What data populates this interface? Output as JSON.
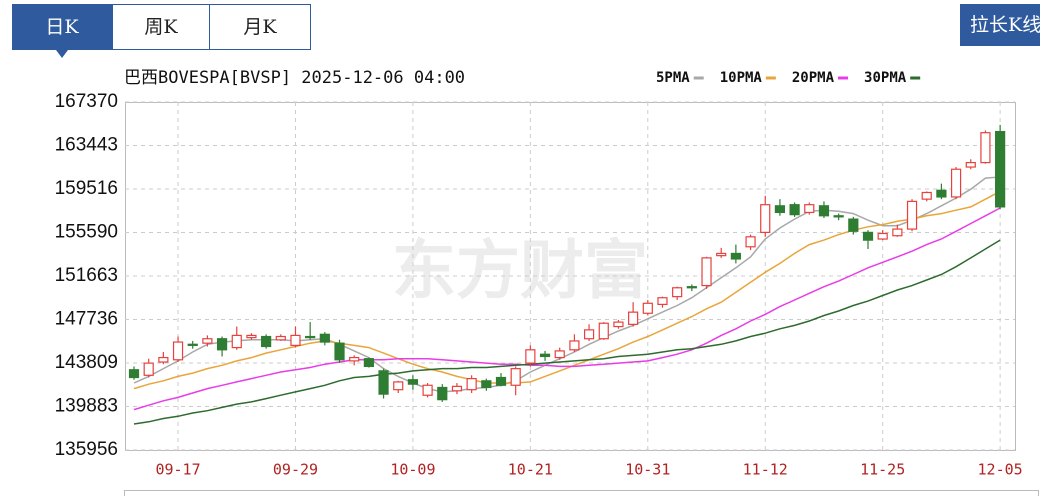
{
  "toolbar": {
    "tabs": [
      "日K",
      "周K",
      "月K"
    ],
    "button": "拉长K线"
  },
  "chart_data": {
    "type": "candlestick",
    "title": "巴西BOVESPA[BVSP] 2025-12-06 04:00",
    "watermark": "东方财富",
    "categories": [
      null,
      null,
      null,
      "09-17",
      null,
      null,
      null,
      null,
      null,
      null,
      null,
      "09-29",
      null,
      null,
      null,
      null,
      null,
      null,
      null,
      "10-09",
      null,
      null,
      null,
      null,
      null,
      null,
      null,
      "10-21",
      null,
      null,
      null,
      null,
      null,
      null,
      null,
      "10-31",
      null,
      null,
      null,
      null,
      null,
      null,
      null,
      "11-12",
      null,
      null,
      null,
      null,
      null,
      null,
      null,
      "11-25",
      null,
      null,
      null,
      null,
      null,
      null,
      null,
      "12-05"
    ],
    "open": [
      143200,
      142700,
      143900,
      144100,
      145500,
      145600,
      146000,
      145200,
      146100,
      146200,
      145900,
      145400,
      146200,
      146400,
      145600,
      144000,
      144200,
      143100,
      141400,
      142300,
      140900,
      141600,
      141300,
      141400,
      142200,
      142500,
      141800,
      143800,
      144600,
      144300,
      145000,
      146000,
      146000,
      147100,
      147300,
      148300,
      149100,
      149800,
      150700,
      150800,
      153500,
      153700,
      154300,
      155600,
      158000,
      158100,
      157400,
      158000,
      157100,
      156800,
      155600,
      155000,
      155300,
      155900,
      158600,
      159400,
      158800,
      161500,
      161900,
      164700
    ],
    "high": [
      143500,
      144200,
      144800,
      146200,
      145800,
      146300,
      146200,
      147100,
      146500,
      146400,
      146400,
      147100,
      147500,
      146600,
      145900,
      144500,
      144300,
      143300,
      142200,
      142700,
      142000,
      141900,
      142000,
      142700,
      142400,
      142900,
      143500,
      145400,
      144900,
      145200,
      146400,
      147300,
      147500,
      147700,
      149300,
      149500,
      149800,
      150700,
      150900,
      153400,
      154200,
      154500,
      155400,
      158900,
      158600,
      158300,
      158300,
      158400,
      157300,
      157000,
      155800,
      155800,
      156300,
      158600,
      159300,
      160000,
      161500,
      162200,
      164800,
      165300
    ],
    "low": [
      142300,
      142500,
      143700,
      143900,
      145100,
      145300,
      144400,
      145000,
      145900,
      145100,
      145800,
      145200,
      145900,
      145400,
      143800,
      143600,
      143400,
      140600,
      141100,
      141400,
      140700,
      140300,
      141000,
      141100,
      141300,
      141700,
      140900,
      143500,
      144000,
      144100,
      144800,
      145800,
      145900,
      146900,
      147100,
      148100,
      148800,
      149500,
      150300,
      150500,
      153300,
      152800,
      154000,
      155200,
      157100,
      157000,
      157200,
      156900,
      156700,
      155400,
      154100,
      154900,
      155200,
      155700,
      158400,
      158600,
      158600,
      161300,
      161800,
      157700
    ],
    "close": [
      142500,
      143800,
      144300,
      145700,
      145400,
      146000,
      145000,
      146300,
      146300,
      145300,
      146200,
      146300,
      146100,
      145700,
      144100,
      144300,
      143500,
      141000,
      142100,
      141900,
      141800,
      140500,
      141700,
      142400,
      141600,
      141800,
      143300,
      145000,
      144400,
      144900,
      145800,
      146800,
      147400,
      147500,
      148400,
      149200,
      149700,
      150600,
      150600,
      153300,
      153700,
      153200,
      155200,
      158100,
      157400,
      157200,
      158100,
      157100,
      157000,
      155700,
      154900,
      155500,
      155900,
      158400,
      159200,
      158800,
      161300,
      161900,
      164600,
      157900
    ],
    "up_color": "#e8403c",
    "down_color": "#2e7d32",
    "series": [
      {
        "name": "5PMA",
        "color": "#a8a8a8",
        "values": [
          142000,
          142600,
          143300,
          144000,
          144800,
          145500,
          145700,
          145800,
          145900,
          145900,
          145900,
          145800,
          145900,
          146000,
          145500,
          144900,
          144300,
          143300,
          142600,
          142000,
          141500,
          141200,
          141300,
          141500,
          141600,
          141800,
          142200,
          143000,
          143600,
          144200,
          144800,
          145500,
          146100,
          146700,
          147200,
          147800,
          148400,
          149000,
          149700,
          150600,
          151500,
          152400,
          153400,
          155000,
          156000,
          156800,
          157500,
          157600,
          157500,
          157300,
          156700,
          156200,
          156200,
          156700,
          157300,
          158000,
          158700,
          159500,
          160500,
          160600
        ]
      },
      {
        "name": "10PMA",
        "color": "#eaa53a",
        "values": [
          141500,
          141900,
          142200,
          142600,
          142900,
          143300,
          143600,
          144000,
          144300,
          144700,
          145000,
          145300,
          145600,
          145800,
          145600,
          145400,
          145200,
          144700,
          144200,
          143700,
          143300,
          143000,
          142600,
          142300,
          142000,
          142000,
          142000,
          142100,
          142600,
          143100,
          143600,
          144100,
          144600,
          145100,
          145700,
          146200,
          146800,
          147400,
          148000,
          148700,
          149300,
          150200,
          151100,
          152000,
          152800,
          153700,
          154500,
          154900,
          155400,
          155800,
          156100,
          156300,
          156600,
          156800,
          157100,
          157300,
          157600,
          157900,
          158600,
          159300
        ]
      },
      {
        "name": "20PMA",
        "color": "#e83ce8",
        "values": [
          139600,
          140000,
          140400,
          140700,
          141100,
          141500,
          141800,
          142100,
          142400,
          142700,
          143000,
          143200,
          143400,
          143700,
          143900,
          144100,
          144100,
          144100,
          144200,
          144200,
          144200,
          144100,
          144000,
          143900,
          143800,
          143700,
          143700,
          143600,
          143600,
          143500,
          143500,
          143600,
          143700,
          143800,
          143900,
          144000,
          144300,
          144600,
          145000,
          145600,
          146300,
          146900,
          147600,
          148200,
          148900,
          149500,
          150100,
          150700,
          151200,
          151800,
          152400,
          152900,
          153400,
          153900,
          154500,
          155000,
          155700,
          156400,
          157100,
          157800
        ]
      },
      {
        "name": "30PMA",
        "color": "#2e6b2e",
        "values": [
          138300,
          138500,
          138800,
          139000,
          139300,
          139500,
          139800,
          140100,
          140300,
          140600,
          140900,
          141200,
          141500,
          141800,
          142200,
          142500,
          142600,
          142800,
          142900,
          143100,
          143200,
          143300,
          143300,
          143400,
          143400,
          143500,
          143600,
          143700,
          143800,
          143900,
          144000,
          144100,
          144200,
          144400,
          144500,
          144600,
          144800,
          145000,
          145100,
          145300,
          145500,
          145800,
          146200,
          146500,
          146900,
          147200,
          147600,
          148100,
          148500,
          149000,
          149400,
          149900,
          150400,
          150800,
          151300,
          151800,
          152500,
          153300,
          154100,
          154900
        ]
      }
    ],
    "ylim": [
      135956,
      167370
    ],
    "yticks": [
      135956,
      139883,
      143809,
      147736,
      151663,
      155590,
      159516,
      163443,
      167370
    ],
    "grid": true
  }
}
